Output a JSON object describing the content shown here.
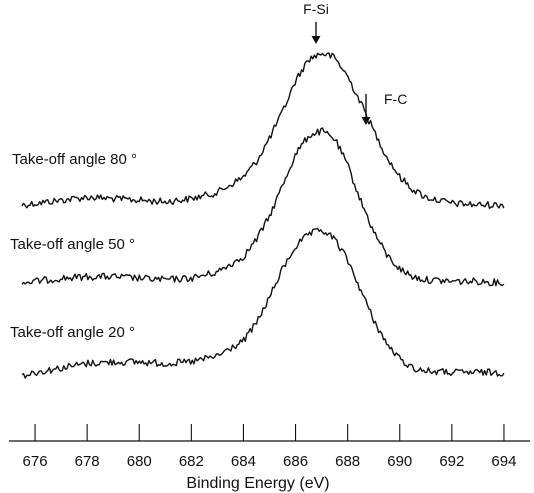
{
  "chart_data": {
    "type": "line",
    "xlabel": "Binding Energy (eV)",
    "ylabel": "",
    "title": "",
    "xlim": [
      675,
      695
    ],
    "x_ticks": [
      "676",
      "678",
      "680",
      "682",
      "684",
      "686",
      "688",
      "690",
      "692",
      "694"
    ],
    "x_tick_values": [
      676,
      678,
      680,
      682,
      684,
      686,
      688,
      690,
      692,
      694
    ],
    "grid": false,
    "annotations": [
      {
        "label": "F-Si",
        "x": 687.0
      },
      {
        "label": "F-C",
        "x": 688.8
      }
    ],
    "series": [
      {
        "name": "Take-off angle 80 °",
        "x": [
          675.5,
          676,
          677,
          678,
          679,
          680,
          681,
          682,
          683,
          684,
          684.5,
          685,
          685.5,
          686,
          686.5,
          687,
          687.5,
          688,
          688.5,
          689,
          689.5,
          690,
          690.5,
          691,
          692,
          693,
          694
        ],
        "y": [
          0.02,
          0.03,
          0.05,
          0.07,
          0.06,
          0.05,
          0.04,
          0.06,
          0.1,
          0.2,
          0.3,
          0.45,
          0.62,
          0.82,
          0.96,
          1.0,
          0.97,
          0.85,
          0.68,
          0.5,
          0.33,
          0.2,
          0.12,
          0.07,
          0.03,
          0.02,
          0.02
        ]
      },
      {
        "name": "Take-off angle 50 °",
        "x": [
          675.5,
          676,
          677,
          678,
          679,
          680,
          681,
          682,
          683,
          684,
          684.5,
          685,
          685.5,
          686,
          686.5,
          687,
          687.5,
          688,
          688.5,
          689,
          689.5,
          690,
          690.5,
          691,
          692,
          693,
          694
        ],
        "y": [
          0.02,
          0.03,
          0.05,
          0.06,
          0.06,
          0.05,
          0.04,
          0.05,
          0.09,
          0.19,
          0.3,
          0.45,
          0.65,
          0.85,
          0.97,
          1.0,
          0.95,
          0.78,
          0.55,
          0.35,
          0.2,
          0.11,
          0.06,
          0.04,
          0.03,
          0.03,
          0.02
        ]
      },
      {
        "name": "Take-off angle 20 °",
        "x": [
          675.5,
          676,
          677,
          678,
          679,
          680,
          681,
          682,
          683,
          684,
          684.5,
          685,
          685.5,
          686,
          686.5,
          687,
          687.5,
          688,
          688.5,
          689,
          689.5,
          690,
          690.5,
          691,
          692,
          693,
          694
        ],
        "y": [
          0.03,
          0.05,
          0.08,
          0.11,
          0.12,
          0.12,
          0.11,
          0.12,
          0.16,
          0.26,
          0.38,
          0.55,
          0.74,
          0.89,
          0.97,
          1.0,
          0.94,
          0.8,
          0.6,
          0.4,
          0.24,
          0.14,
          0.08,
          0.06,
          0.05,
          0.05,
          0.05
        ]
      }
    ]
  }
}
